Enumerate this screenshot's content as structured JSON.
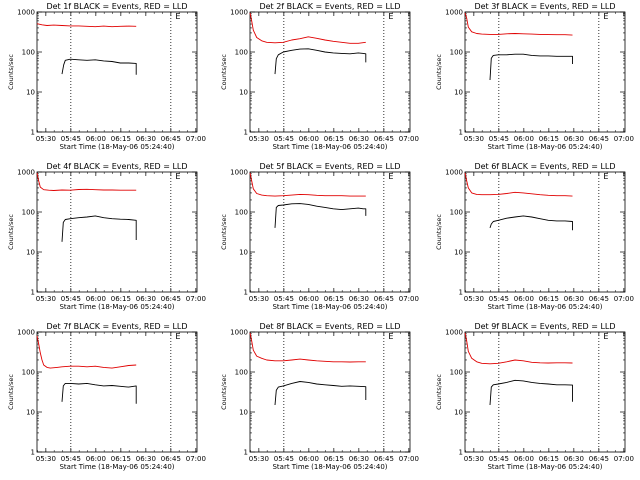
{
  "figure": {
    "background": "#ffffff",
    "events_color": "#000000",
    "lld_color": "#e00000"
  },
  "chart_data": [
    {
      "type": "line",
      "scale": "log",
      "title": "Det 1f BLACK = Events, RED = LLD",
      "xlabel": "Start Time (18-May-06 05:24:40)",
      "ylabel": "Counts/sec",
      "xlim_min": [
        0,
        96
      ],
      "ylim": [
        1,
        1000
      ],
      "x_tick_labels": [
        "05:30",
        "05:45",
        "06:00",
        "06:15",
        "06:30",
        "06:45",
        "07:00"
      ],
      "x_tick_min": [
        5.3,
        20.3,
        35.3,
        50.3,
        65.3,
        80.3,
        95.3
      ],
      "y_tick_labels": [
        "1",
        "10",
        "100",
        "1000"
      ],
      "y_tick_values": [
        1,
        10,
        100,
        1000
      ],
      "dotted_lines_min": [
        20.3,
        80.3
      ],
      "e_marker_min": 83,
      "series": [
        {
          "name": "Events",
          "color": "#000000",
          "x": [
            15,
            16,
            17,
            20,
            25,
            30,
            35,
            40,
            45,
            50,
            55,
            59.5,
            59.5
          ],
          "y": [
            28,
            48,
            62,
            66,
            64,
            62,
            64,
            60,
            58,
            53,
            53,
            52,
            27
          ]
        },
        {
          "name": "LLD",
          "color": "#e00000",
          "x": [
            0,
            3,
            6,
            10,
            15,
            20,
            25,
            30,
            35,
            40,
            45,
            50,
            55,
            59.5
          ],
          "y": [
            510,
            480,
            460,
            470,
            460,
            450,
            450,
            440,
            430,
            445,
            430,
            440,
            445,
            440
          ]
        }
      ]
    },
    {
      "type": "line",
      "scale": "log",
      "title": "Det 2f BLACK = Events, RED = LLD",
      "xlabel": "Start Time (18-May-06 05:24:40)",
      "ylabel": "Counts/sec",
      "xlim_min": [
        0,
        96
      ],
      "ylim": [
        1,
        1000
      ],
      "x_tick_labels": [
        "05:30",
        "05:45",
        "06:00",
        "06:15",
        "06:30",
        "06:45",
        "07:00"
      ],
      "x_tick_min": [
        5.3,
        20.3,
        35.3,
        50.3,
        65.3,
        80.3,
        95.3
      ],
      "y_tick_labels": [
        "1",
        "10",
        "100",
        "1000"
      ],
      "y_tick_values": [
        1,
        10,
        100,
        1000
      ],
      "dotted_lines_min": [
        20.3,
        80.3
      ],
      "e_marker_min": 83,
      "series": [
        {
          "name": "Events",
          "color": "#000000",
          "x": [
            15,
            15.8,
            17,
            20,
            25,
            30,
            35,
            40,
            45,
            50,
            55,
            60,
            65,
            68,
            69.5,
            69.5
          ],
          "y": [
            28,
            68,
            85,
            100,
            110,
            118,
            120,
            110,
            100,
            95,
            92,
            90,
            95,
            92,
            90,
            55
          ]
        },
        {
          "name": "LLD",
          "color": "#e00000",
          "x": [
            0,
            1,
            2,
            4,
            7,
            10,
            15,
            20,
            25,
            30,
            35,
            40,
            45,
            50,
            55,
            60,
            65,
            69.5
          ],
          "y": [
            950,
            600,
            350,
            230,
            190,
            175,
            170,
            175,
            200,
            215,
            240,
            220,
            200,
            185,
            175,
            165,
            165,
            175
          ]
        }
      ]
    },
    {
      "type": "line",
      "scale": "log",
      "title": "Det 3f BLACK = Events, RED = LLD",
      "xlabel": "Start Time (18-May-06 05:24:40)",
      "ylabel": "Counts/sec",
      "xlim_min": [
        0,
        96
      ],
      "ylim": [
        1,
        1000
      ],
      "x_tick_labels": [
        "05:30",
        "05:45",
        "06:00",
        "06:15",
        "06:30",
        "06:45",
        "07:00"
      ],
      "x_tick_min": [
        5.3,
        20.3,
        35.3,
        50.3,
        65.3,
        80.3,
        95.3
      ],
      "y_tick_labels": [
        "1",
        "10",
        "100",
        "1000"
      ],
      "y_tick_values": [
        1,
        10,
        100,
        1000
      ],
      "dotted_lines_min": [
        20.3,
        80.3
      ],
      "e_marker_min": 83,
      "series": [
        {
          "name": "Events",
          "color": "#000000",
          "x": [
            15,
            15.8,
            17,
            20,
            25,
            30,
            35,
            40,
            45,
            50,
            55,
            60,
            64.5,
            64.5
          ],
          "y": [
            20,
            70,
            82,
            85,
            85,
            88,
            88,
            82,
            80,
            80,
            78,
            78,
            78,
            50
          ]
        },
        {
          "name": "LLD",
          "color": "#e00000",
          "x": [
            0,
            1,
            2,
            4,
            7,
            10,
            15,
            20,
            25,
            30,
            35,
            40,
            45,
            50,
            55,
            60,
            64.5
          ],
          "y": [
            950,
            700,
            420,
            320,
            290,
            280,
            275,
            275,
            285,
            290,
            285,
            280,
            275,
            272,
            270,
            270,
            265
          ]
        }
      ]
    },
    {
      "type": "line",
      "scale": "log",
      "title": "Det 4f BLACK = Events, RED = LLD",
      "xlabel": "Start Time (18-May-06 05:24:40)",
      "ylabel": "Counts/sec",
      "xlim_min": [
        0,
        96
      ],
      "ylim": [
        1,
        1000
      ],
      "x_tick_labels": [
        "05:30",
        "05:45",
        "06:00",
        "06:15",
        "06:30",
        "06:45",
        "07:00"
      ],
      "x_tick_min": [
        5.3,
        20.3,
        35.3,
        50.3,
        65.3,
        80.3,
        95.3
      ],
      "y_tick_labels": [
        "1",
        "10",
        "100",
        "1000"
      ],
      "y_tick_values": [
        1,
        10,
        100,
        1000
      ],
      "dotted_lines_min": [
        20.3,
        80.3
      ],
      "e_marker_min": 83,
      "series": [
        {
          "name": "Events",
          "color": "#000000",
          "x": [
            15,
            15.8,
            17,
            20,
            25,
            30,
            35,
            40,
            45,
            50,
            55,
            59.5,
            59.5
          ],
          "y": [
            18,
            55,
            65,
            68,
            72,
            75,
            80,
            72,
            68,
            66,
            65,
            62,
            20
          ]
        },
        {
          "name": "LLD",
          "color": "#e00000",
          "x": [
            0,
            1,
            2,
            4,
            7,
            10,
            15,
            20,
            25,
            30,
            35,
            40,
            45,
            50,
            55,
            59.5
          ],
          "y": [
            950,
            600,
            420,
            360,
            350,
            345,
            355,
            350,
            365,
            370,
            360,
            355,
            355,
            350,
            350,
            350
          ]
        }
      ]
    },
    {
      "type": "line",
      "scale": "log",
      "title": "Det 5f BLACK = Events, RED = LLD",
      "xlabel": "Start Time (18-May-06 05:24:40)",
      "ylabel": "Counts/sec",
      "xlim_min": [
        0,
        96
      ],
      "ylim": [
        1,
        1000
      ],
      "x_tick_labels": [
        "05:30",
        "05:45",
        "06:00",
        "06:15",
        "06:30",
        "06:45",
        "07:00"
      ],
      "x_tick_min": [
        5.3,
        20.3,
        35.3,
        50.3,
        65.3,
        80.3,
        95.3
      ],
      "y_tick_labels": [
        "1",
        "10",
        "100",
        "1000"
      ],
      "y_tick_values": [
        1,
        10,
        100,
        1000
      ],
      "dotted_lines_min": [
        20.3,
        80.3
      ],
      "e_marker_min": 83,
      "series": [
        {
          "name": "Events",
          "color": "#000000",
          "x": [
            15,
            15.8,
            17,
            20,
            25,
            30,
            35,
            40,
            45,
            50,
            55,
            60,
            65,
            68,
            69.5,
            69.5
          ],
          "y": [
            40,
            130,
            145,
            150,
            160,
            162,
            155,
            140,
            130,
            120,
            115,
            120,
            125,
            120,
            120,
            80
          ]
        },
        {
          "name": "LLD",
          "color": "#e00000",
          "x": [
            0,
            1,
            2,
            4,
            7,
            10,
            15,
            20,
            25,
            30,
            35,
            40,
            45,
            50,
            55,
            60,
            65,
            69.5
          ],
          "y": [
            950,
            600,
            380,
            290,
            265,
            255,
            250,
            255,
            265,
            275,
            270,
            262,
            255,
            255,
            255,
            250,
            250,
            250
          ]
        }
      ]
    },
    {
      "type": "line",
      "scale": "log",
      "title": "Det 6f BLACK = Events, RED = LLD",
      "xlabel": "Start Time (18-May-06 05:24:40)",
      "ylabel": "Counts/sec",
      "xlim_min": [
        0,
        96
      ],
      "ylim": [
        1,
        1000
      ],
      "x_tick_labels": [
        "05:30",
        "05:45",
        "06:00",
        "06:15",
        "06:30",
        "06:45",
        "07:00"
      ],
      "x_tick_min": [
        5.3,
        20.3,
        35.3,
        50.3,
        65.3,
        80.3,
        95.3
      ],
      "y_tick_labels": [
        "1",
        "10",
        "100",
        "1000"
      ],
      "y_tick_values": [
        1,
        10,
        100,
        1000
      ],
      "dotted_lines_min": [
        20.3,
        80.3
      ],
      "e_marker_min": 83,
      "series": [
        {
          "name": "Events",
          "color": "#000000",
          "x": [
            15,
            15.8,
            17,
            20,
            25,
            30,
            35,
            40,
            45,
            50,
            55,
            60,
            64.5,
            64.5
          ],
          "y": [
            40,
            50,
            58,
            62,
            70,
            75,
            80,
            75,
            68,
            62,
            60,
            60,
            58,
            35
          ]
        },
        {
          "name": "LLD",
          "color": "#e00000",
          "x": [
            0,
            1,
            2,
            4,
            7,
            10,
            15,
            20,
            25,
            30,
            35,
            40,
            45,
            50,
            55,
            60,
            64.5
          ],
          "y": [
            950,
            600,
            400,
            300,
            275,
            270,
            270,
            275,
            290,
            310,
            300,
            285,
            270,
            262,
            255,
            255,
            250
          ]
        }
      ]
    },
    {
      "type": "line",
      "scale": "log",
      "title": "Det 7f BLACK = Events, RED = LLD",
      "xlabel": "Start Time (18-May-06 05:24:40)",
      "ylabel": "Counts/sec",
      "xlim_min": [
        0,
        96
      ],
      "ylim": [
        1,
        1000
      ],
      "x_tick_labels": [
        "05:30",
        "05:45",
        "06:00",
        "06:15",
        "06:30",
        "06:45",
        "07:00"
      ],
      "x_tick_min": [
        5.3,
        20.3,
        35.3,
        50.3,
        65.3,
        80.3,
        95.3
      ],
      "y_tick_labels": [
        "1",
        "10",
        "100",
        "1000"
      ],
      "y_tick_values": [
        1,
        10,
        100,
        1000
      ],
      "dotted_lines_min": [
        20.3,
        80.3
      ],
      "e_marker_min": 83,
      "series": [
        {
          "name": "Events",
          "color": "#000000",
          "x": [
            15,
            15.8,
            17,
            20,
            25,
            30,
            35,
            40,
            45,
            50,
            55,
            59.5,
            59.5
          ],
          "y": [
            18,
            45,
            52,
            52,
            50,
            52,
            48,
            45,
            46,
            44,
            42,
            45,
            16
          ]
        },
        {
          "name": "LLD",
          "color": "#e00000",
          "x": [
            0,
            1,
            2,
            3,
            4,
            6,
            8,
            12,
            15,
            20,
            25,
            30,
            35,
            40,
            45,
            50,
            55,
            59.5
          ],
          "y": [
            800,
            500,
            300,
            200,
            150,
            130,
            125,
            130,
            135,
            140,
            140,
            135,
            140,
            130,
            125,
            135,
            145,
            150
          ]
        }
      ]
    },
    {
      "type": "line",
      "scale": "log",
      "title": "Det 8f BLACK = Events, RED = LLD",
      "xlabel": "Start Time (18-May-06 05:24:40)",
      "ylabel": "Counts/sec",
      "xlim_min": [
        0,
        96
      ],
      "ylim": [
        1,
        1000
      ],
      "x_tick_labels": [
        "05:30",
        "05:45",
        "06:00",
        "06:15",
        "06:30",
        "06:45",
        "07:00"
      ],
      "x_tick_min": [
        5.3,
        20.3,
        35.3,
        50.3,
        65.3,
        80.3,
        95.3
      ],
      "y_tick_labels": [
        "1",
        "10",
        "100",
        "1000"
      ],
      "y_tick_values": [
        1,
        10,
        100,
        1000
      ],
      "dotted_lines_min": [
        20.3,
        80.3
      ],
      "e_marker_min": 83,
      "series": [
        {
          "name": "Events",
          "color": "#000000",
          "x": [
            15,
            15.8,
            17,
            20,
            25,
            30,
            35,
            40,
            45,
            50,
            55,
            60,
            65,
            69.5,
            69.5
          ],
          "y": [
            15,
            35,
            42,
            45,
            52,
            58,
            55,
            50,
            48,
            46,
            44,
            45,
            44,
            43,
            20
          ]
        },
        {
          "name": "LLD",
          "color": "#e00000",
          "x": [
            0,
            1,
            2,
            4,
            7,
            10,
            15,
            20,
            25,
            30,
            35,
            40,
            45,
            50,
            55,
            60,
            65,
            69.5
          ],
          "y": [
            950,
            600,
            350,
            250,
            220,
            200,
            190,
            190,
            200,
            210,
            200,
            190,
            185,
            180,
            180,
            178,
            180,
            180
          ]
        }
      ]
    },
    {
      "type": "line",
      "scale": "log",
      "title": "Det 9f BLACK = Events, RED = LLD",
      "xlabel": "Start Time (18-May-06 05:24:40)",
      "ylabel": "Counts/sec",
      "xlim_min": [
        0,
        96
      ],
      "ylim": [
        1,
        1000
      ],
      "x_tick_labels": [
        "05:30",
        "05:45",
        "06:00",
        "06:15",
        "06:30",
        "06:45",
        "07:00"
      ],
      "x_tick_min": [
        5.3,
        20.3,
        35.3,
        50.3,
        65.3,
        80.3,
        95.3
      ],
      "y_tick_labels": [
        "1",
        "10",
        "100",
        "1000"
      ],
      "y_tick_values": [
        1,
        10,
        100,
        1000
      ],
      "dotted_lines_min": [
        20.3,
        80.3
      ],
      "e_marker_min": 83,
      "series": [
        {
          "name": "Events",
          "color": "#000000",
          "x": [
            15,
            15.8,
            17,
            20,
            25,
            30,
            35,
            40,
            45,
            50,
            55,
            60,
            64.5,
            64.5
          ],
          "y": [
            15,
            42,
            48,
            50,
            55,
            62,
            60,
            55,
            52,
            50,
            48,
            48,
            47,
            18
          ]
        },
        {
          "name": "LLD",
          "color": "#e00000",
          "x": [
            0,
            1,
            2,
            4,
            7,
            10,
            15,
            20,
            25,
            30,
            35,
            40,
            45,
            50,
            55,
            60,
            64.5
          ],
          "y": [
            950,
            600,
            330,
            220,
            180,
            165,
            160,
            165,
            180,
            200,
            190,
            175,
            170,
            168,
            170,
            170,
            168
          ]
        }
      ]
    }
  ]
}
